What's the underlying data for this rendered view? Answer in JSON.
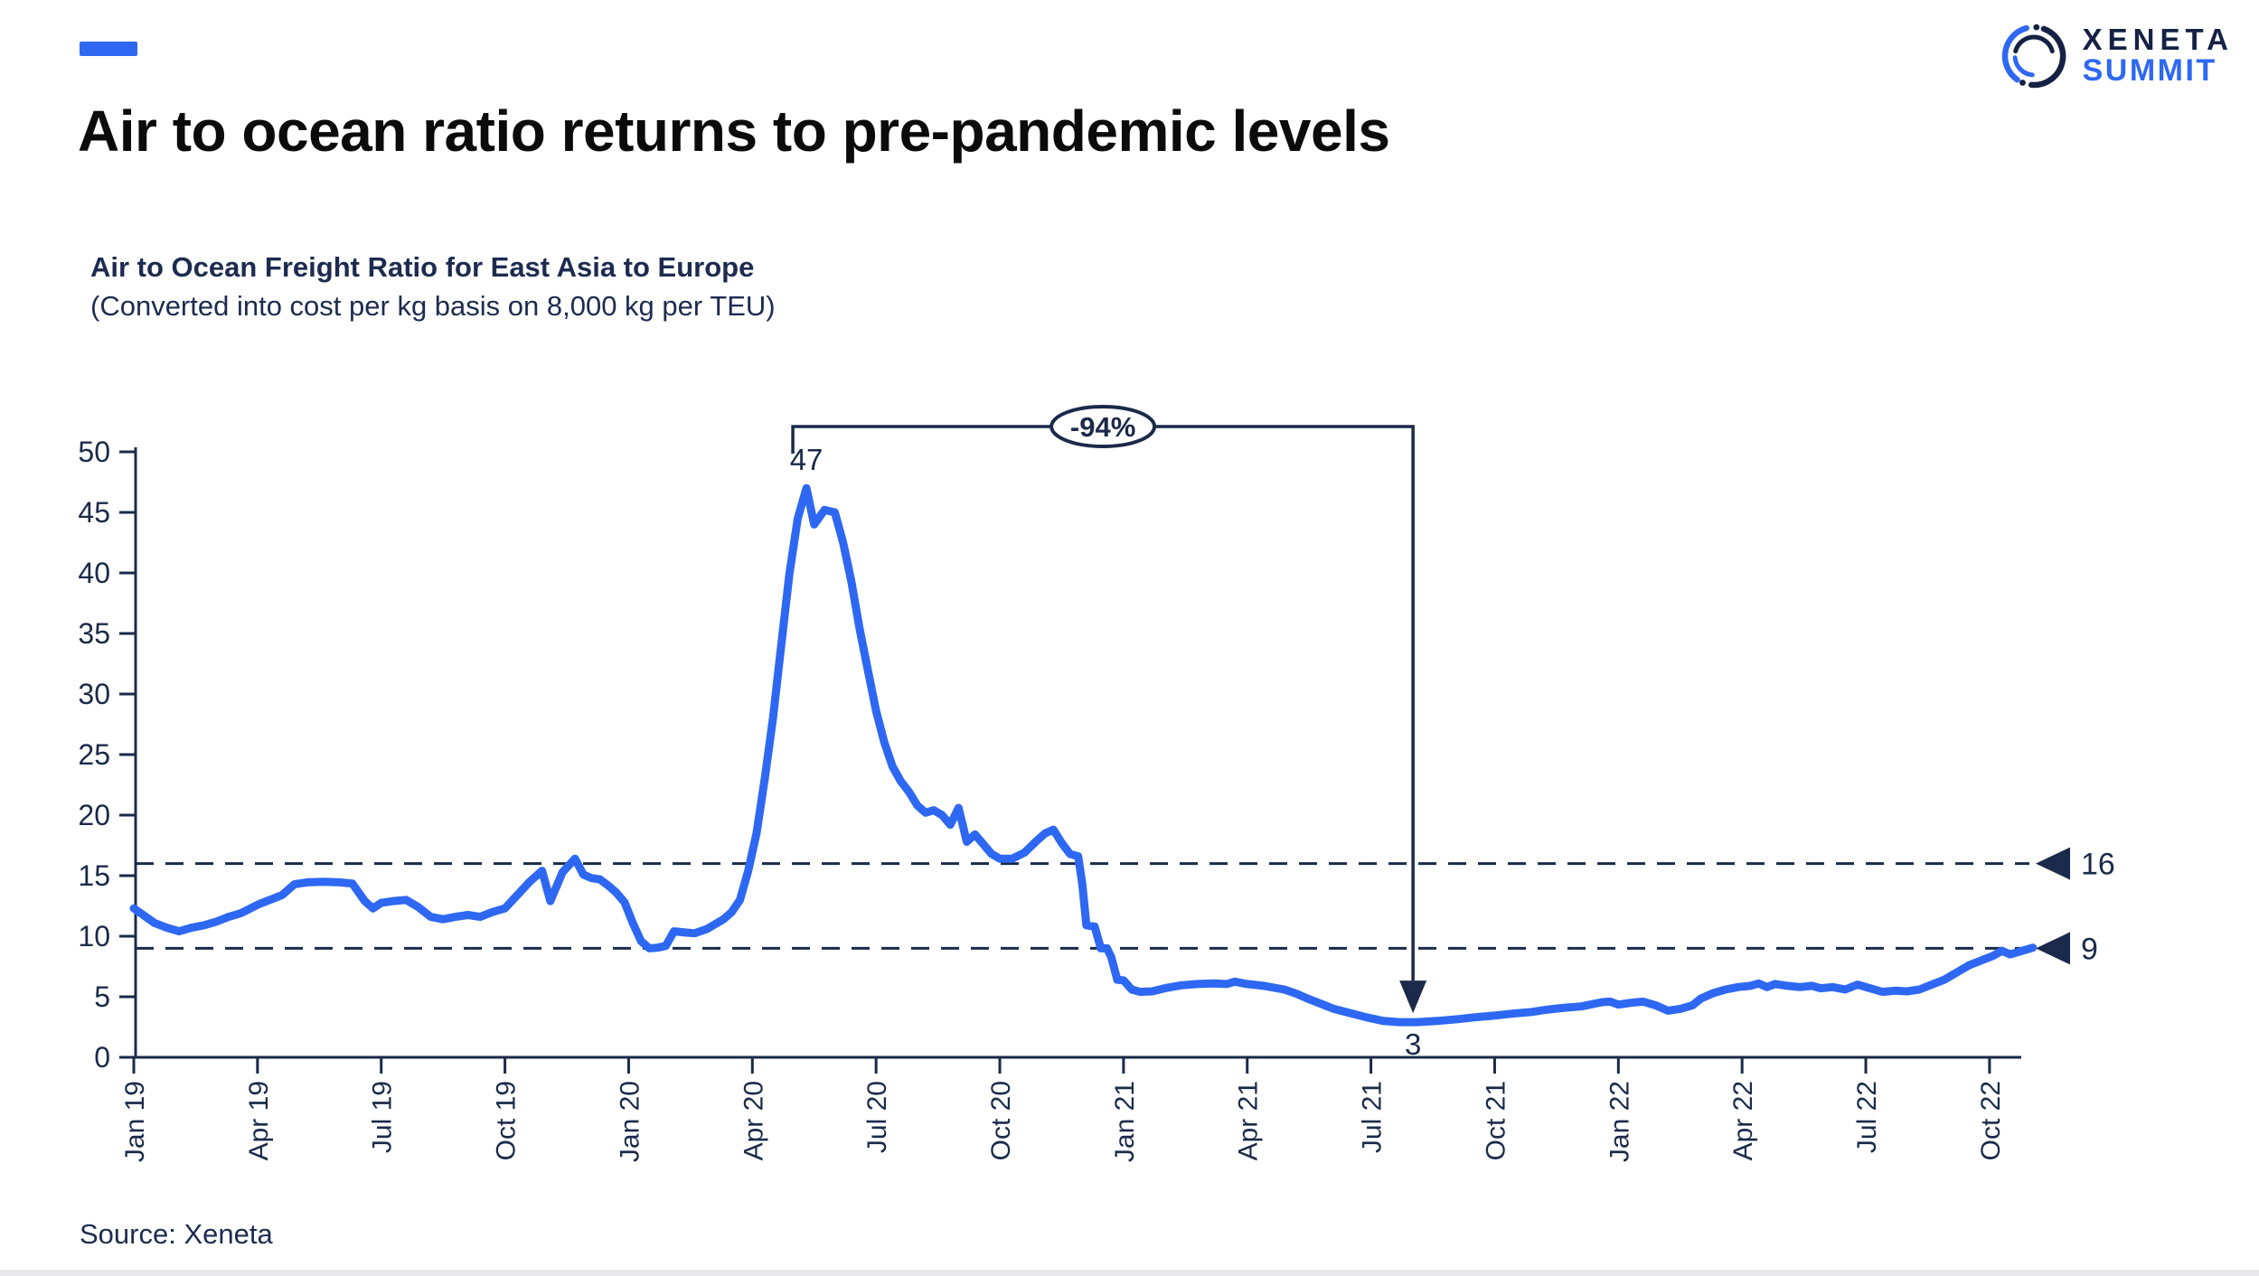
{
  "header": {
    "title": "Air to ocean ratio returns to pre-pandemic levels"
  },
  "logo": {
    "brand": "XENETA",
    "event": "SUMMIT"
  },
  "chart": {
    "title": "Air to Ocean Freight Ratio for East Asia to Europe",
    "subtitle": "(Converted into cost per kg basis on 8,000 kg per TEU)"
  },
  "source": {
    "label": "Source: Xeneta"
  },
  "chart_data": {
    "type": "line",
    "title": "Air to Ocean Freight Ratio for East Asia to Europe",
    "subtitle": "(Converted into cost per kg basis on 8,000 kg per TEU)",
    "x_unit": "months since Jan 2019",
    "x_tick_labels": [
      "Jan 19",
      "Apr 19",
      "Jul 19",
      "Oct 19",
      "Jan 20",
      "Apr 20",
      "Jul 20",
      "Oct 20",
      "Jan 21",
      "Apr 21",
      "Jul 21",
      "Oct 21",
      "Jan 22",
      "Apr 22",
      "Jul 22",
      "Oct 22"
    ],
    "x_tick_months": [
      0,
      3,
      6,
      9,
      12,
      15,
      18,
      21,
      24,
      27,
      30,
      33,
      36,
      39,
      42,
      45
    ],
    "ylim": [
      0,
      50
    ],
    "y_ticks": [
      0,
      5,
      10,
      15,
      20,
      25,
      30,
      35,
      40,
      45,
      50
    ],
    "grid": false,
    "legend": "none",
    "colors": {
      "navy": "#1b2a4a",
      "blue": "#2e68f2"
    },
    "reference_lines": [
      {
        "value": 16,
        "label": "16"
      },
      {
        "value": 9,
        "label": "9"
      }
    ],
    "annotations": {
      "peak": {
        "label": "47",
        "month": 16.31,
        "value": 47
      },
      "trough": {
        "label": "3",
        "month": 31.02,
        "value": 2.9
      },
      "change_badge": {
        "label": "-94%"
      }
    },
    "series": [
      {
        "name": "Air to Ocean Freight Ratio (cost per kg)",
        "color": "#2e68f2",
        "points": [
          [
            0,
            12.3
          ],
          [
            0.25,
            11.7
          ],
          [
            0.5,
            11.1
          ],
          [
            0.8,
            10.7
          ],
          [
            1.1,
            10.4
          ],
          [
            1.4,
            10.7
          ],
          [
            1.7,
            10.9
          ],
          [
            2,
            11.2
          ],
          [
            2.3,
            11.6
          ],
          [
            2.6,
            11.9
          ],
          [
            3,
            12.6
          ],
          [
            3.3,
            13
          ],
          [
            3.6,
            13.4
          ],
          [
            3.9,
            14.3
          ],
          [
            4.2,
            14.45
          ],
          [
            4.6,
            14.5
          ],
          [
            5,
            14.45
          ],
          [
            5.3,
            14.35
          ],
          [
            5.6,
            12.9
          ],
          [
            5.8,
            12.3
          ],
          [
            6,
            12.75
          ],
          [
            6.3,
            12.9
          ],
          [
            6.6,
            13
          ],
          [
            6.9,
            12.4
          ],
          [
            7.2,
            11.6
          ],
          [
            7.5,
            11.4
          ],
          [
            7.8,
            11.6
          ],
          [
            8.1,
            11.75
          ],
          [
            8.4,
            11.6
          ],
          [
            8.7,
            12
          ],
          [
            9,
            12.3
          ],
          [
            9.3,
            13.4
          ],
          [
            9.6,
            14.5
          ],
          [
            9.9,
            15.4
          ],
          [
            10.1,
            12.9
          ],
          [
            10.4,
            15.3
          ],
          [
            10.7,
            16.4
          ],
          [
            10.9,
            15.1
          ],
          [
            11.1,
            14.8
          ],
          [
            11.3,
            14.7
          ],
          [
            11.5,
            14.2
          ],
          [
            11.7,
            13.6
          ],
          [
            11.9,
            12.8
          ],
          [
            12.1,
            11.1
          ],
          [
            12.3,
            9.6
          ],
          [
            12.5,
            9
          ],
          [
            12.7,
            9.05
          ],
          [
            12.9,
            9.2
          ],
          [
            13.1,
            10.4
          ],
          [
            13.4,
            10.3
          ],
          [
            13.6,
            10.25
          ],
          [
            13.9,
            10.6
          ],
          [
            14.1,
            11
          ],
          [
            14.3,
            11.4
          ],
          [
            14.5,
            12
          ],
          [
            14.7,
            13
          ],
          [
            14.9,
            15.4
          ],
          [
            15.1,
            18.5
          ],
          [
            15.3,
            23
          ],
          [
            15.5,
            28
          ],
          [
            15.7,
            34
          ],
          [
            15.9,
            40
          ],
          [
            16.1,
            44.5
          ],
          [
            16.31,
            47
          ],
          [
            16.5,
            44
          ],
          [
            16.75,
            45.2
          ],
          [
            17,
            45
          ],
          [
            17.2,
            42.5
          ],
          [
            17.4,
            39.3
          ],
          [
            17.6,
            35.4
          ],
          [
            17.8,
            32
          ],
          [
            18,
            28.6
          ],
          [
            18.2,
            26
          ],
          [
            18.4,
            24
          ],
          [
            18.6,
            22.8
          ],
          [
            18.8,
            21.9
          ],
          [
            19,
            20.8
          ],
          [
            19.2,
            20.2
          ],
          [
            19.4,
            20.4
          ],
          [
            19.6,
            20
          ],
          [
            19.8,
            19.2
          ],
          [
            20,
            20.6
          ],
          [
            20.2,
            17.8
          ],
          [
            20.4,
            18.4
          ],
          [
            20.6,
            17.6
          ],
          [
            20.8,
            16.8
          ],
          [
            21,
            16.4
          ],
          [
            21.3,
            16.4
          ],
          [
            21.6,
            16.9
          ],
          [
            21.9,
            17.9
          ],
          [
            22.1,
            18.5
          ],
          [
            22.3,
            18.8
          ],
          [
            22.5,
            17.7
          ],
          [
            22.7,
            16.8
          ],
          [
            22.9,
            16.6
          ],
          [
            23,
            14.3
          ],
          [
            23.1,
            10.9
          ],
          [
            23.3,
            10.8
          ],
          [
            23.45,
            9
          ],
          [
            23.6,
            9
          ],
          [
            23.7,
            8.3
          ],
          [
            23.85,
            6.4
          ],
          [
            24,
            6.35
          ],
          [
            24.2,
            5.6
          ],
          [
            24.4,
            5.4
          ],
          [
            24.7,
            5.45
          ],
          [
            25,
            5.7
          ],
          [
            25.4,
            5.95
          ],
          [
            25.8,
            6.05
          ],
          [
            26.2,
            6.1
          ],
          [
            26.5,
            6.05
          ],
          [
            26.7,
            6.25
          ],
          [
            27,
            6.05
          ],
          [
            27.4,
            5.9
          ],
          [
            27.9,
            5.6
          ],
          [
            28.2,
            5.25
          ],
          [
            28.5,
            4.8
          ],
          [
            28.8,
            4.4
          ],
          [
            29.1,
            4
          ],
          [
            29.5,
            3.65
          ],
          [
            29.9,
            3.3
          ],
          [
            30.3,
            3
          ],
          [
            30.7,
            2.9
          ],
          [
            31.1,
            2.9
          ],
          [
            31.6,
            3
          ],
          [
            32.1,
            3.15
          ],
          [
            32.5,
            3.3
          ],
          [
            33,
            3.45
          ],
          [
            33.4,
            3.6
          ],
          [
            33.9,
            3.75
          ],
          [
            34.3,
            3.95
          ],
          [
            34.7,
            4.1
          ],
          [
            35.1,
            4.2
          ],
          [
            35.6,
            4.55
          ],
          [
            35.8,
            4.6
          ],
          [
            36,
            4.35
          ],
          [
            36.3,
            4.5
          ],
          [
            36.6,
            4.6
          ],
          [
            36.9,
            4.3
          ],
          [
            37.2,
            3.85
          ],
          [
            37.5,
            4
          ],
          [
            37.8,
            4.3
          ],
          [
            38,
            4.85
          ],
          [
            38.3,
            5.3
          ],
          [
            38.6,
            5.6
          ],
          [
            38.9,
            5.8
          ],
          [
            39.2,
            5.9
          ],
          [
            39.4,
            6.1
          ],
          [
            39.6,
            5.8
          ],
          [
            39.8,
            6.05
          ],
          [
            40.1,
            5.9
          ],
          [
            40.4,
            5.8
          ],
          [
            40.7,
            5.9
          ],
          [
            40.9,
            5.7
          ],
          [
            41.2,
            5.8
          ],
          [
            41.5,
            5.6
          ],
          [
            41.8,
            6
          ],
          [
            42.1,
            5.7
          ],
          [
            42.4,
            5.4
          ],
          [
            42.7,
            5.5
          ],
          [
            43,
            5.45
          ],
          [
            43.3,
            5.6
          ],
          [
            43.6,
            6
          ],
          [
            43.9,
            6.4
          ],
          [
            44.2,
            7
          ],
          [
            44.5,
            7.6
          ],
          [
            44.8,
            8
          ],
          [
            45.1,
            8.4
          ],
          [
            45.3,
            8.8
          ],
          [
            45.5,
            8.5
          ],
          [
            45.7,
            8.7
          ],
          [
            45.9,
            8.9
          ],
          [
            46.05,
            9.05
          ]
        ]
      }
    ]
  }
}
